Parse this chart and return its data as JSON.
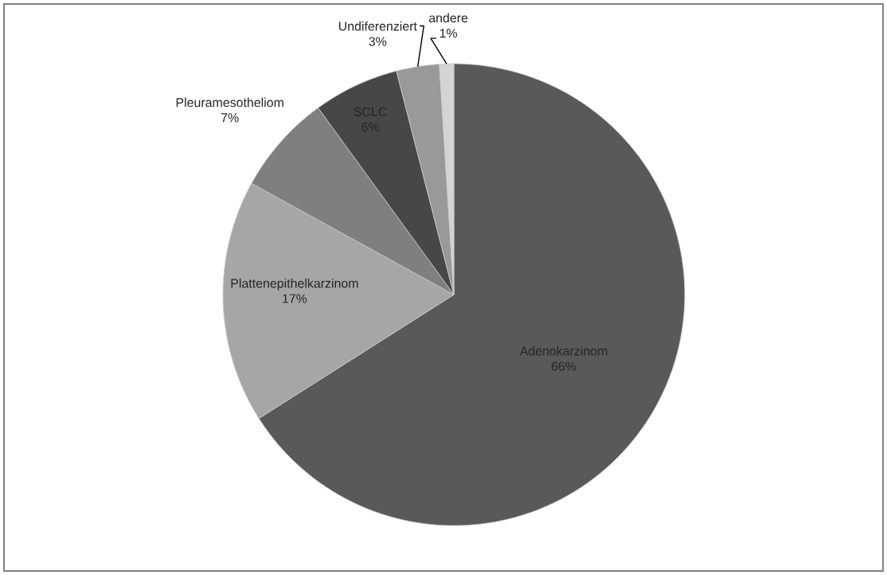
{
  "chart_data": {
    "type": "pie",
    "categories": [
      "Adenokarzinom",
      "Plattenepithelkarzinom",
      "Pleuramesotheliom",
      "SCLC",
      "Undiferenziert",
      "andere"
    ],
    "values": [
      66,
      17,
      7,
      6,
      3,
      1
    ],
    "value_labels": [
      "66%",
      "17%",
      "7%",
      "6%",
      "3%",
      "1%"
    ],
    "colors": [
      "#595959",
      "#a6a6a6",
      "#7f7f7f",
      "#474747",
      "#999999",
      "#d4d4d4"
    ]
  }
}
